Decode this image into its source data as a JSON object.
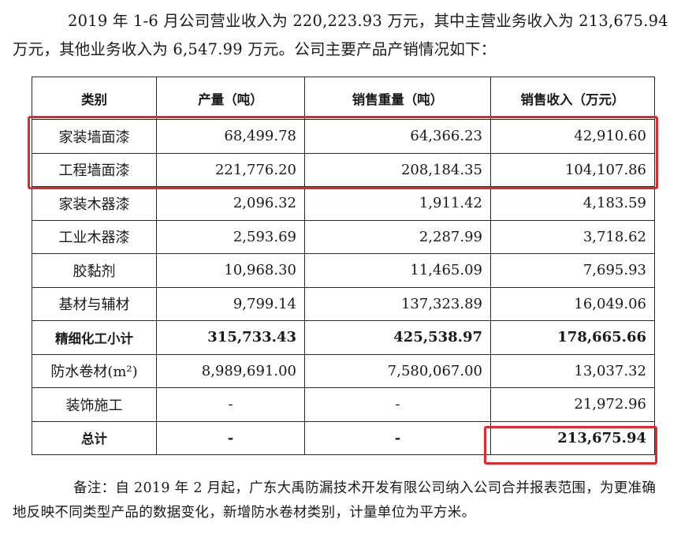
{
  "intro": "2019 年 1-6 月公司营业收入为 220,223.93 万元，其中主营业务收入为 213,675.94 万元，其他业务收入为 6,547.99 万元。公司主要产品产销情况如下：",
  "table": {
    "headers": [
      "类别",
      "产量（吨）",
      "销售重量（吨）",
      "销售收入（万元）"
    ],
    "rows": [
      {
        "cat": "家装墙面漆",
        "prod": "68,499.78",
        "sales_wt": "64,366.23",
        "revenue": "42,910.60"
      },
      {
        "cat": "工程墙面漆",
        "prod": "221,776.20",
        "sales_wt": "208,184.35",
        "revenue": "104,107.86"
      },
      {
        "cat": "家装木器漆",
        "prod": "2,096.32",
        "sales_wt": "1,911.42",
        "revenue": "4,183.59"
      },
      {
        "cat": "工业木器漆",
        "prod": "2,593.69",
        "sales_wt": "2,287.99",
        "revenue": "3,718.62"
      },
      {
        "cat": "胶黏剂",
        "prod": "10,968.30",
        "sales_wt": "11,465.09",
        "revenue": "7,695.93"
      },
      {
        "cat": "基材与辅材",
        "prod": "9,799.14",
        "sales_wt": "137,323.89",
        "revenue": "16,049.06"
      },
      {
        "cat": "精细化工小计",
        "prod": "315,733.43",
        "sales_wt": "425,538.97",
        "revenue": "178,665.66"
      },
      {
        "cat": "防水卷材(m²)",
        "prod": "8,989,691.00",
        "sales_wt": "7,580,067.00",
        "revenue": "13,037.32"
      },
      {
        "cat": "装饰施工",
        "prod": "-",
        "sales_wt": "-",
        "revenue": "21,972.96"
      },
      {
        "cat": "总计",
        "prod": "-",
        "sales_wt": "-",
        "revenue": "213,675.94"
      }
    ]
  },
  "note": "备注：自 2019 年 2 月起，广东大禹防漏技术开发有限公司纳入公司合并报表范围，为更准确地反映不同类型产品的数据变化，新增防水卷材类别，计量单位为平方米。",
  "highlight_color": "#e4272b"
}
